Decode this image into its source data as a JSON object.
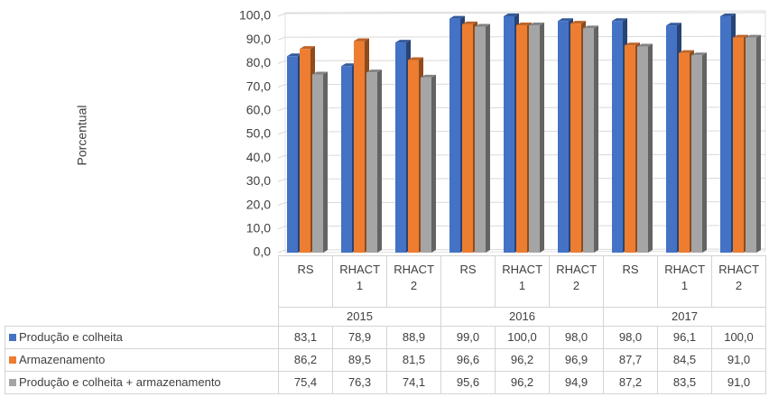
{
  "chart_data": {
    "type": "bar",
    "ylabel": "Porcentual",
    "categories": [
      "RS",
      "RHACT 1",
      "RHACT 2",
      "RS",
      "RHACT 1",
      "RHACT 2",
      "RS",
      "RHACT 1",
      "RHACT 2"
    ],
    "groups": [
      "2015",
      "2016",
      "2017"
    ],
    "series": [
      {
        "name": "Produção e colheita",
        "color": "#4472c4",
        "values": [
          83.1,
          78.9,
          88.9,
          99.0,
          100.0,
          98.0,
          98.0,
          96.1,
          100.0
        ],
        "value_labels": [
          "83,1",
          "78,9",
          "88,9",
          "99,0",
          "100,0",
          "98,0",
          "98,0",
          "96,1",
          "100,0"
        ]
      },
      {
        "name": "Armazenamento",
        "color": "#ed7d31",
        "values": [
          86.2,
          89.5,
          81.5,
          96.6,
          96.2,
          96.9,
          87.7,
          84.5,
          91.0
        ],
        "value_labels": [
          "86,2",
          "89,5",
          "81,5",
          "96,6",
          "96,2",
          "96,9",
          "87,7",
          "84,5",
          "91,0"
        ]
      },
      {
        "name": "Produção e colheita + armazenamento",
        "color": "#a5a5a5",
        "values": [
          75.4,
          76.3,
          74.1,
          95.6,
          96.2,
          94.9,
          87.2,
          83.5,
          91.0
        ],
        "value_labels": [
          "75,4",
          "76,3",
          "74,1",
          "95,6",
          "96,2",
          "94,9",
          "87,2",
          "83,5",
          "91,0"
        ]
      }
    ],
    "ylim": [
      0,
      100
    ],
    "yticks": [
      {
        "value": 0,
        "label": "0,0"
      },
      {
        "value": 10,
        "label": "10,0"
      },
      {
        "value": 20,
        "label": "20,0"
      },
      {
        "value": 30,
        "label": "30,0"
      },
      {
        "value": 40,
        "label": "40,0"
      },
      {
        "value": 50,
        "label": "50,0"
      },
      {
        "value": 60,
        "label": "60,0"
      },
      {
        "value": 70,
        "label": "70,0"
      },
      {
        "value": 80,
        "label": "80,0"
      },
      {
        "value": 90,
        "label": "90,0"
      },
      {
        "value": 100,
        "label": "100,0"
      }
    ],
    "grid": true
  }
}
